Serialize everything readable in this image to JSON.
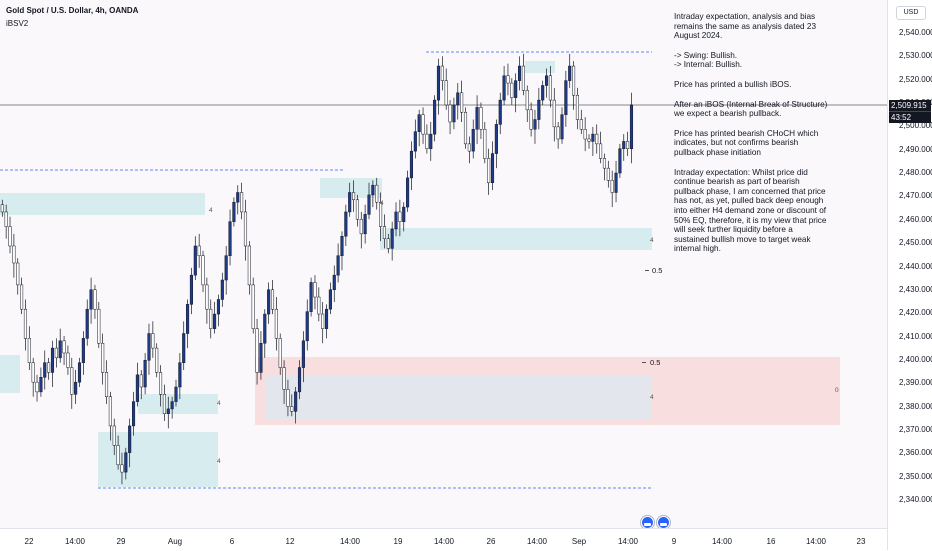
{
  "header": {
    "symbol": "Gold Spot / U.S. Dollar, 4h, OANDA",
    "indicator": "iBSV2"
  },
  "price_axis": {
    "currency": "USD",
    "ticks": [
      "2,540.000",
      "2,530.000",
      "2,520.000",
      "2,510.000",
      "2,500.000",
      "2,490.000",
      "2,480.000",
      "2,470.000",
      "2,460.000",
      "2,450.000",
      "2,440.000",
      "2,430.000",
      "2,420.000",
      "2,410.000",
      "2,400.000",
      "2,390.000",
      "2,380.000",
      "2,370.000",
      "2,360.000",
      "2,350.000",
      "2,340.000"
    ],
    "last_price": "2,509.915",
    "countdown": "43:52"
  },
  "time_axis": {
    "labels": [
      "22",
      "14:00",
      "29",
      "Aug",
      "6",
      "12",
      "14:00",
      "19",
      "14:00",
      "26",
      "14:00",
      "Sep",
      "14:00",
      "9",
      "14:00",
      "16",
      "14:00",
      "23"
    ]
  },
  "zones": {
    "labels": [
      "4",
      "4",
      "4",
      "4",
      "4",
      "4",
      "0"
    ],
    "fib_labels": [
      "0.5",
      "0.5"
    ]
  },
  "notes": {
    "p1": "Intraday expectation, analysis and bias remains the same as analysis dated 23 August 2024.",
    "p2a": "-> Swing:  Bullish.",
    "p2b": "-> Internal:  Bullish.",
    "p3": "Price has printed a bullish iBOS.",
    "p4": "After an iBOS (Internal Break of Structure) we expect a bearish pullback.",
    "p5": "Price has printed bearish CHoCH which indicates, but not confirms bearish pullback phase initiation",
    "p6": "Intraday expectation: Whilst price did continue bearish as part of bearish pullback phase, I am concerned that price has not, as yet, pulled back deep enough into either H4 demand zone or discount of 50% EQ, therefore, it is my view that price will seek further liquidity before a sustained bullish move to target weak internal high."
  },
  "colors": {
    "bull_candle": "#1e3a8a",
    "bear_candle": "#ffffff",
    "demand_zone": "#d6ecef",
    "supply_zone": "#f8dede",
    "discount_zone": "#e3e6ec",
    "liquidity_line": "#2962ff",
    "price_line": "#131722"
  },
  "chart_data": {
    "type": "candlestick",
    "title": "Gold Spot / U.S. Dollar, 4h, OANDA",
    "ylim": [
      2340,
      2545
    ],
    "last_price": 2509.915,
    "key_levels": [
      2485,
      2531.5,
      2352
    ],
    "closes": [
      2466,
      2460,
      2452,
      2445,
      2436,
      2426,
      2414,
      2404,
      2396,
      2392,
      2398,
      2404,
      2400,
      2410,
      2406,
      2413,
      2408,
      2402,
      2391,
      2396,
      2404,
      2414,
      2426,
      2434,
      2426,
      2412,
      2400,
      2390,
      2378,
      2370,
      2362,
      2359,
      2367,
      2378,
      2388,
      2399,
      2394,
      2405,
      2416,
      2410,
      2400,
      2391,
      2383,
      2385,
      2388,
      2394,
      2404,
      2416,
      2428,
      2440,
      2452,
      2448,
      2436,
      2426,
      2418,
      2424,
      2430,
      2438,
      2448,
      2462,
      2470,
      2474,
      2466,
      2452,
      2436,
      2418,
      2400,
      2412,
      2424,
      2434,
      2426,
      2414,
      2402,
      2393,
      2386,
      2384,
      2392,
      2402,
      2413,
      2425,
      2437,
      2431,
      2424,
      2418,
      2426,
      2434,
      2440,
      2448,
      2456,
      2466,
      2474,
      2471,
      2463,
      2457,
      2465,
      2473,
      2477,
      2470,
      2460,
      2455,
      2451,
      2459,
      2466,
      2462,
      2468,
      2480,
      2491,
      2499,
      2506,
      2498,
      2492,
      2498,
      2512,
      2526,
      2520,
      2510,
      2503,
      2510,
      2515,
      2507,
      2494,
      2491,
      2500,
      2509,
      2500,
      2488,
      2478,
      2490,
      2502,
      2512,
      2522,
      2519,
      2513,
      2520,
      2526,
      2516,
      2508,
      2500,
      2504,
      2512,
      2518,
      2522,
      2512,
      2501,
      2496,
      2506,
      2520,
      2526,
      2514,
      2504,
      2500,
      2496,
      2495,
      2498,
      2494,
      2488,
      2484,
      2479,
      2474,
      2482,
      2492,
      2495,
      2492,
      2510
    ]
  }
}
